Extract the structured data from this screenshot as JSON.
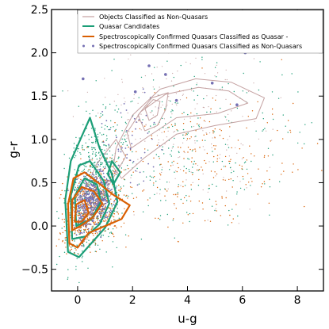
{
  "chart_data": {
    "type": "scatter",
    "xlabel": "u-g",
    "ylabel": "g-r",
    "xlim": [
      -0.95,
      8.95
    ],
    "ylim": [
      -0.75,
      2.5
    ],
    "xticks": [
      0,
      2,
      4,
      6,
      8
    ],
    "xtick_labels": [
      "0",
      "2",
      "4",
      "6",
      "8"
    ],
    "yticks": [
      -0.5,
      0.0,
      0.5,
      1.0,
      1.5,
      2.0,
      2.5
    ],
    "ytick_labels": [
      "−0.5",
      "0.0",
      "0.5",
      "1.0",
      "1.5",
      "2.0",
      "2.5"
    ],
    "grid": false,
    "legend_position": "top-right",
    "series": [
      {
        "name": "Objects Classified as Non-Quasars",
        "style": "contour",
        "color": "#c4a1a1",
        "contours": [
          [
            [
              1.4,
              0.9
            ],
            [
              2.0,
              1.28
            ],
            [
              3.0,
              1.58
            ],
            [
              4.3,
              1.7
            ],
            [
              5.6,
              1.66
            ],
            [
              6.8,
              1.48
            ],
            [
              6.5,
              1.24
            ],
            [
              5.0,
              1.16
            ],
            [
              3.6,
              1.06
            ],
            [
              2.4,
              0.78
            ],
            [
              1.6,
              0.55
            ],
            [
              1.3,
              0.68
            ]
          ],
          [
            [
              1.8,
              1.08
            ],
            [
              2.3,
              1.32
            ],
            [
              3.2,
              1.52
            ],
            [
              4.4,
              1.6
            ],
            [
              5.5,
              1.56
            ],
            [
              6.2,
              1.42
            ],
            [
              5.1,
              1.3
            ],
            [
              3.6,
              1.25
            ],
            [
              2.6,
              1.04
            ],
            [
              1.95,
              0.9
            ]
          ],
          [
            [
              2.2,
              1.28
            ],
            [
              2.7,
              1.48
            ],
            [
              3.3,
              1.54
            ],
            [
              3.2,
              1.34
            ],
            [
              2.9,
              1.16
            ],
            [
              2.45,
              1.1
            ]
          ],
          [
            [
              2.45,
              1.36
            ],
            [
              2.75,
              1.46
            ],
            [
              3.0,
              1.44
            ],
            [
              2.9,
              1.28
            ],
            [
              2.6,
              1.22
            ]
          ],
          [
            [
              0.05,
              0.25
            ],
            [
              0.7,
              0.72
            ],
            [
              1.4,
              1.0
            ],
            [
              1.75,
              0.8
            ],
            [
              1.1,
              0.45
            ],
            [
              0.4,
              0.12
            ]
          ]
        ]
      },
      {
        "name": "Quasar Candidates",
        "style": "contour",
        "color": "#1b9e77",
        "contours": [
          [
            [
              -0.35,
              -0.3
            ],
            [
              -0.45,
              0.3
            ],
            [
              -0.25,
              0.75
            ],
            [
              0.1,
              1.0
            ],
            [
              0.45,
              1.25
            ],
            [
              0.8,
              0.9
            ],
            [
              1.25,
              0.6
            ],
            [
              1.45,
              0.28
            ],
            [
              1.0,
              -0.02
            ],
            [
              0.5,
              -0.2
            ],
            [
              0.05,
              -0.36
            ]
          ],
          [
            [
              -0.2,
              -0.15
            ],
            [
              -0.25,
              0.35
            ],
            [
              0.05,
              0.7
            ],
            [
              0.45,
              0.75
            ],
            [
              0.95,
              0.52
            ],
            [
              1.15,
              0.26
            ],
            [
              0.8,
              0.02
            ],
            [
              0.3,
              -0.12
            ]
          ],
          [
            [
              -0.05,
              0.0
            ],
            [
              -0.1,
              0.35
            ],
            [
              0.25,
              0.55
            ],
            [
              0.7,
              0.48
            ],
            [
              0.85,
              0.28
            ],
            [
              0.5,
              0.08
            ]
          ],
          [
            [
              1.1,
              0.6
            ],
            [
              1.25,
              0.75
            ],
            [
              1.55,
              0.62
            ],
            [
              1.3,
              0.48
            ]
          ]
        ]
      },
      {
        "name": "Spectroscopically Confirmed Quasars Classified as Quasar -",
        "style": "contour",
        "color": "#d95f02",
        "contours": [
          [
            [
              -0.3,
              -0.2
            ],
            [
              -0.35,
              0.25
            ],
            [
              -0.15,
              0.55
            ],
            [
              0.25,
              0.62
            ],
            [
              0.75,
              0.5
            ],
            [
              1.3,
              0.36
            ],
            [
              1.9,
              0.24
            ],
            [
              1.6,
              0.08
            ],
            [
              1.0,
              0.0
            ],
            [
              0.4,
              -0.08
            ],
            [
              0.0,
              -0.25
            ]
          ],
          [
            [
              -0.2,
              -0.05
            ],
            [
              -0.2,
              0.3
            ],
            [
              0.15,
              0.45
            ],
            [
              0.6,
              0.4
            ],
            [
              0.9,
              0.26
            ],
            [
              0.55,
              0.1
            ],
            [
              0.1,
              0.0
            ]
          ],
          [
            [
              -0.1,
              0.05
            ],
            [
              -0.05,
              0.25
            ],
            [
              0.25,
              0.3
            ],
            [
              0.4,
              0.15
            ],
            [
              0.15,
              0.05
            ]
          ]
        ]
      },
      {
        "name": "Spectroscopically Confirmed Quasars Classified as Non-Quasars",
        "style": "points",
        "color": "#7570b3",
        "highlight_points": [
          [
            2.6,
            1.85
          ],
          [
            3.2,
            1.75
          ],
          [
            4.9,
            1.65
          ],
          [
            5.8,
            1.4
          ],
          [
            3.6,
            1.45
          ],
          [
            2.1,
            1.55
          ],
          [
            6.1,
            2.0
          ],
          [
            0.2,
            1.7
          ]
        ]
      }
    ]
  }
}
